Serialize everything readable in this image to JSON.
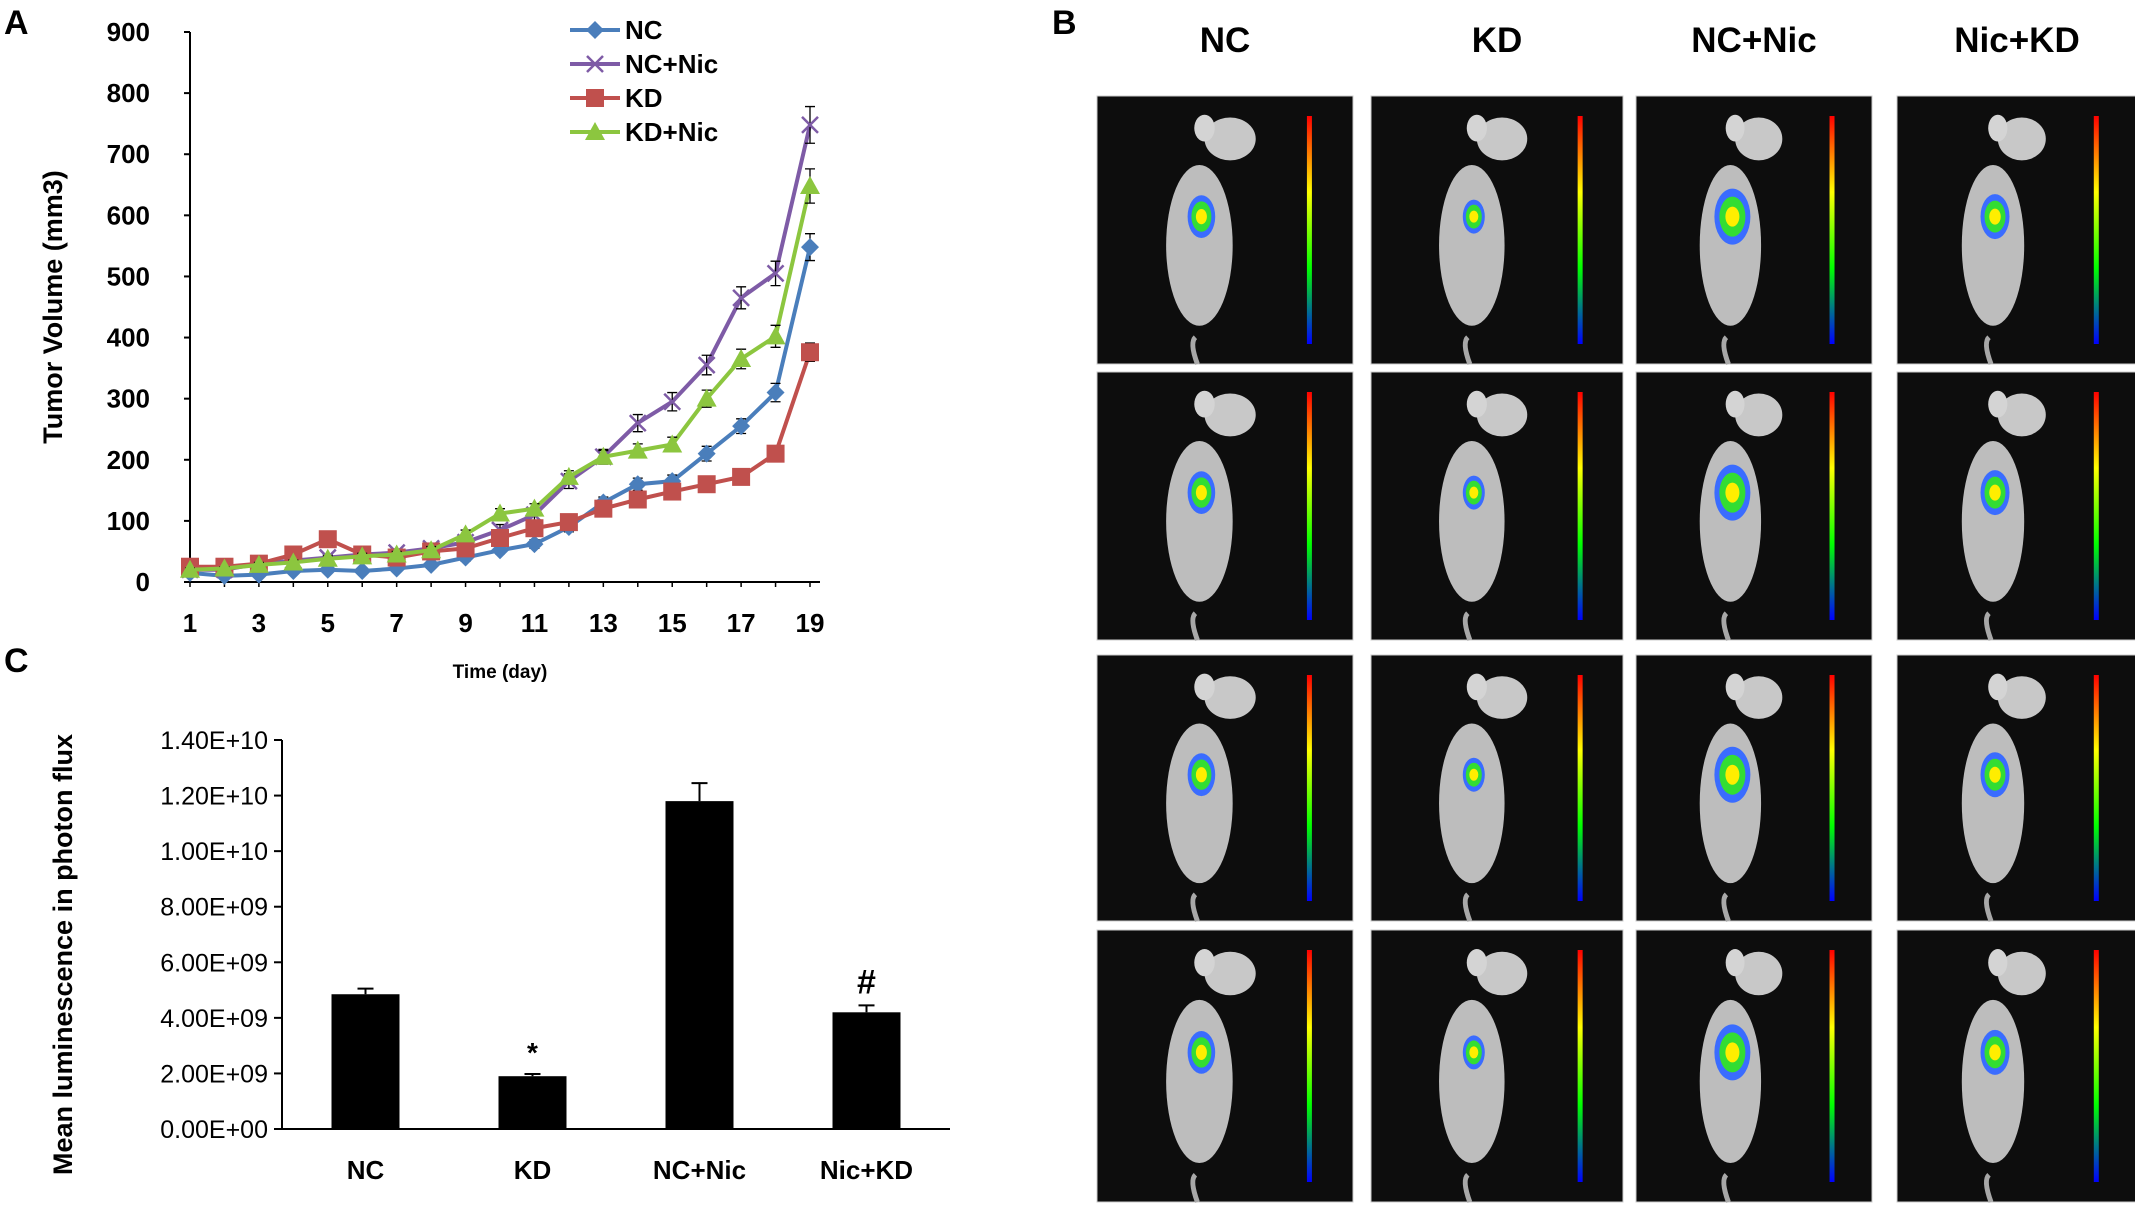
{
  "panels": {
    "a_label": "A",
    "b_label": "B",
    "c_label": "C"
  },
  "colors": {
    "nc": "#4A7EBB",
    "nc_nic": "#7E5BA6",
    "kd": "#C0504D",
    "kd_nic": "#8CC63F",
    "bars": "#000000"
  },
  "chart_data": [
    {
      "type": "line",
      "title": "",
      "xlabel": "Time (day)",
      "ylabel": "Tumor Volume (mm3)",
      "x": [
        1,
        2,
        3,
        4,
        5,
        6,
        7,
        8,
        9,
        10,
        11,
        12,
        13,
        14,
        15,
        16,
        17,
        18,
        19
      ],
      "x_ticks": [
        "1",
        "3",
        "5",
        "7",
        "9",
        "11",
        "13",
        "15",
        "17",
        "19"
      ],
      "y_ticks": [
        "0",
        "100",
        "200",
        "300",
        "400",
        "500",
        "600",
        "700",
        "800",
        "900"
      ],
      "ylim": [
        0,
        900
      ],
      "xlim": [
        1,
        19
      ],
      "legend_position": "top-center",
      "series": [
        {
          "name": "NC",
          "color_key": "nc",
          "marker": "diamond",
          "values": [
            15,
            10,
            12,
            18,
            20,
            18,
            22,
            28,
            40,
            52,
            62,
            90,
            130,
            160,
            165,
            210,
            255,
            310,
            548
          ],
          "errors": [
            3,
            3,
            3,
            3,
            4,
            3,
            4,
            5,
            6,
            6,
            7,
            8,
            9,
            10,
            10,
            12,
            12,
            15,
            22
          ]
        },
        {
          "name": "NC+Nic",
          "color_key": "nc_nic",
          "marker": "x",
          "values": [
            20,
            20,
            30,
            35,
            40,
            45,
            48,
            55,
            65,
            85,
            110,
            165,
            205,
            260,
            295,
            355,
            465,
            505,
            748
          ],
          "errors": [
            3,
            3,
            4,
            5,
            5,
            5,
            6,
            6,
            8,
            9,
            10,
            12,
            12,
            14,
            15,
            16,
            18,
            20,
            30
          ]
        },
        {
          "name": "KD",
          "color_key": "kd",
          "marker": "square",
          "values": [
            25,
            25,
            30,
            45,
            70,
            45,
            40,
            50,
            55,
            72,
            88,
            98,
            120,
            135,
            148,
            160,
            172,
            210,
            376
          ],
          "errors": [
            3,
            3,
            4,
            5,
            6,
            5,
            5,
            6,
            6,
            7,
            8,
            8,
            9,
            9,
            10,
            10,
            10,
            11,
            15
          ]
        },
        {
          "name": "KD+Nic",
          "color_key": "kd_nic",
          "marker": "triangle",
          "values": [
            20,
            22,
            28,
            32,
            38,
            42,
            45,
            52,
            78,
            112,
            120,
            172,
            205,
            215,
            225,
            300,
            365,
            402,
            648
          ],
          "errors": [
            3,
            3,
            4,
            4,
            5,
            5,
            5,
            6,
            7,
            8,
            8,
            10,
            10,
            11,
            12,
            14,
            16,
            18,
            28
          ]
        }
      ]
    },
    {
      "type": "bar",
      "title": "",
      "xlabel": "",
      "ylabel": "Mean luminescence in photon flux",
      "categories": [
        "NC",
        "KD",
        "NC+Nic",
        "Nic+KD"
      ],
      "values": [
        4850000000.0,
        1900000000.0,
        11800000000.0,
        4200000000.0
      ],
      "errors": [
        200000000.0,
        80000000.0,
        650000000.0,
        250000000.0
      ],
      "annotations": [
        "",
        "*",
        "",
        "#"
      ],
      "y_ticks": [
        "0.00E+00",
        "2.00E+09",
        "4.00E+09",
        "6.00E+09",
        "8.00E+09",
        "1.00E+10",
        "1.20E+10",
        "1.40E+10"
      ],
      "ylim": [
        0,
        14000000000.0
      ]
    }
  ],
  "imaging": {
    "columns": [
      "NC",
      "KD",
      "NC+Nic",
      "Nic+KD"
    ],
    "rows": 4
  }
}
